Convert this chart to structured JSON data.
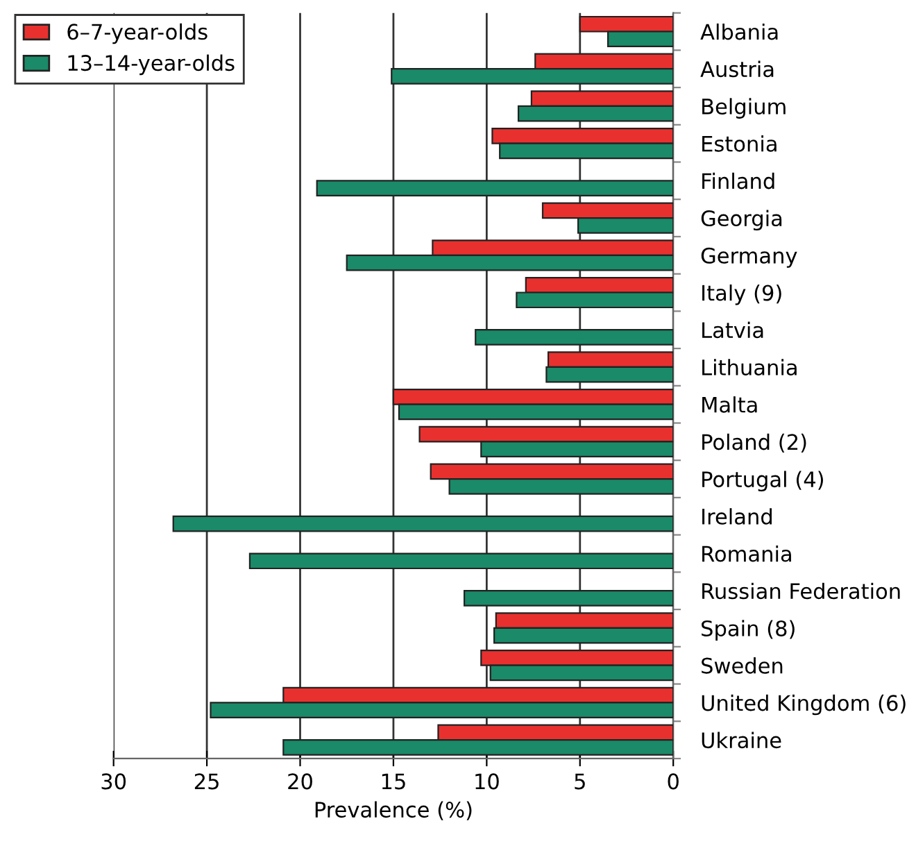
{
  "chart_data": {
    "type": "bar",
    "orientation": "horizontal",
    "xlabel": "Prevalence (%)",
    "categories": [
      "Albania",
      "Austria",
      "Belgium",
      "Estonia",
      "Finland",
      "Georgia",
      "Germany",
      "Italy (9)",
      "Latvia",
      "Lithuania",
      "Malta",
      "Poland (2)",
      "Portugal (4)",
      "Ireland",
      "Romania",
      "Russian Federation",
      "Spain (8)",
      "Sweden",
      "United Kingdom (6)",
      "Ukraine"
    ],
    "series": [
      {
        "name": "6–7-year-olds",
        "color": "#e8312f",
        "values": [
          5.0,
          7.4,
          7.6,
          9.7,
          null,
          7.0,
          12.9,
          7.9,
          null,
          6.7,
          15.0,
          13.6,
          13.0,
          null,
          null,
          null,
          9.5,
          10.3,
          20.9,
          12.6
        ]
      },
      {
        "name": "13–14-year-olds",
        "color": "#1a8a68",
        "values": [
          3.5,
          15.1,
          8.3,
          9.3,
          19.1,
          5.1,
          17.5,
          8.4,
          10.6,
          6.8,
          14.7,
          10.3,
          12.0,
          26.8,
          22.7,
          11.2,
          9.6,
          9.8,
          24.8,
          20.9
        ]
      }
    ],
    "xlim": [
      30,
      0
    ],
    "xticks": [
      30,
      25,
      20,
      15,
      10,
      5,
      0
    ],
    "grid": "x",
    "legend": "top left"
  }
}
